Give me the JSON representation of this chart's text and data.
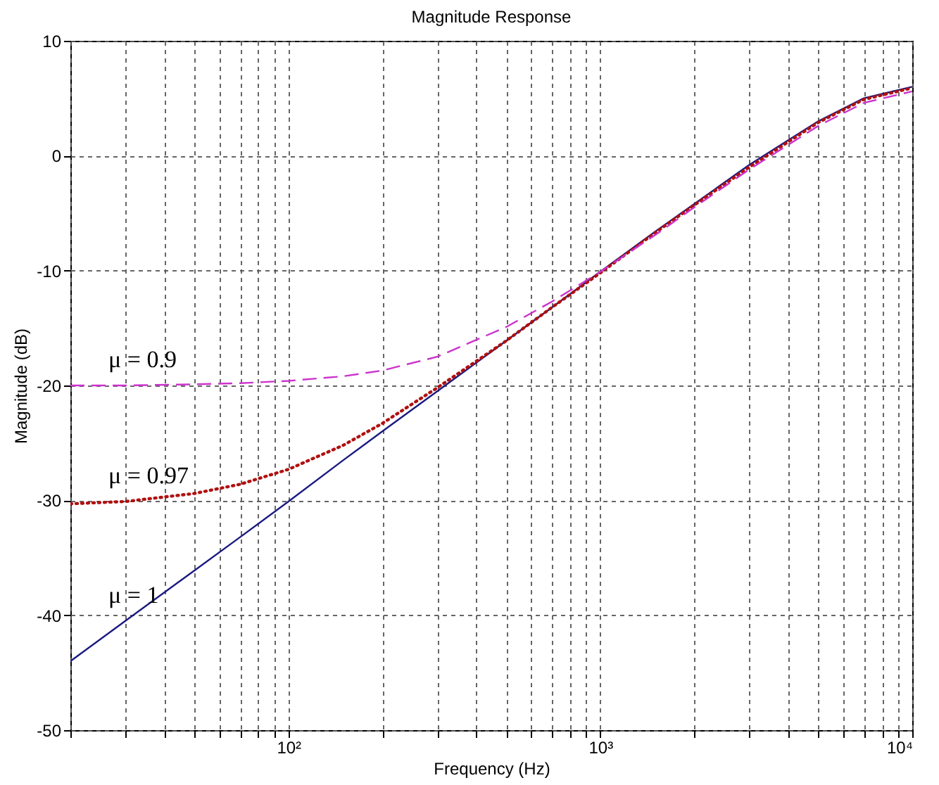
{
  "chart_data": {
    "type": "line",
    "title": "Magnitude Response",
    "xlabel": "Frequency (Hz)",
    "ylabel": "Magnitude (dB)",
    "log": "x",
    "grid": true,
    "xlim": [
      20,
      10000
    ],
    "ylim": [
      -50,
      10
    ],
    "xticks": [
      {
        "value": 20,
        "label": null
      },
      {
        "value": 30,
        "label": null
      },
      {
        "value": 40,
        "label": null
      },
      {
        "value": 50,
        "label": null
      },
      {
        "value": 60,
        "label": null
      },
      {
        "value": 70,
        "label": null
      },
      {
        "value": 80,
        "label": null
      },
      {
        "value": 90,
        "label": null
      },
      {
        "value": 100,
        "label": "10²"
      },
      {
        "value": 200,
        "label": null
      },
      {
        "value": 300,
        "label": null
      },
      {
        "value": 400,
        "label": null
      },
      {
        "value": 500,
        "label": null
      },
      {
        "value": 600,
        "label": null
      },
      {
        "value": 700,
        "label": null
      },
      {
        "value": 800,
        "label": null
      },
      {
        "value": 900,
        "label": null
      },
      {
        "value": 1000,
        "label": "10³"
      },
      {
        "value": 2000,
        "label": null
      },
      {
        "value": 3000,
        "label": null
      },
      {
        "value": 4000,
        "label": null
      },
      {
        "value": 5000,
        "label": null
      },
      {
        "value": 6000,
        "label": null
      },
      {
        "value": 7000,
        "label": null
      },
      {
        "value": 8000,
        "label": null
      },
      {
        "value": 9000,
        "label": null
      },
      {
        "value": 10000,
        "label": "10⁴"
      }
    ],
    "yticks": [
      -50,
      -40,
      -30,
      -20,
      -10,
      0,
      10
    ],
    "x": [
      20,
      30,
      50,
      70,
      100,
      150,
      200,
      300,
      500,
      700,
      1000,
      1500,
      2000,
      3000,
      5000,
      7000,
      10000
    ],
    "series": [
      {
        "name": "μ = 1",
        "color": "#1a1a80",
        "line_style": "solid",
        "values": [
          -44.0,
          -40.5,
          -36.1,
          -33.2,
          -30.1,
          -26.5,
          -24.0,
          -20.5,
          -16.1,
          -13.2,
          -10.1,
          -6.6,
          -4.2,
          -0.8,
          3.0,
          5.0,
          6.0
        ]
      },
      {
        "name": "μ = 0.97",
        "color": "#b01010",
        "line_style": "dotted",
        "values": [
          -30.3,
          -30.1,
          -29.4,
          -28.6,
          -27.3,
          -25.2,
          -23.3,
          -20.2,
          -16.1,
          -13.2,
          -10.2,
          -6.7,
          -4.3,
          -1.0,
          2.9,
          4.9,
          5.9
        ]
      },
      {
        "name": "μ = 0.9",
        "color": "#cc33cc",
        "line_style": "dashed",
        "values": [
          -20.0,
          -20.0,
          -19.9,
          -19.8,
          -19.6,
          -19.2,
          -18.7,
          -17.5,
          -14.9,
          -12.7,
          -10.1,
          -6.9,
          -4.5,
          -1.2,
          2.6,
          4.6,
          5.6
        ]
      }
    ]
  }
}
